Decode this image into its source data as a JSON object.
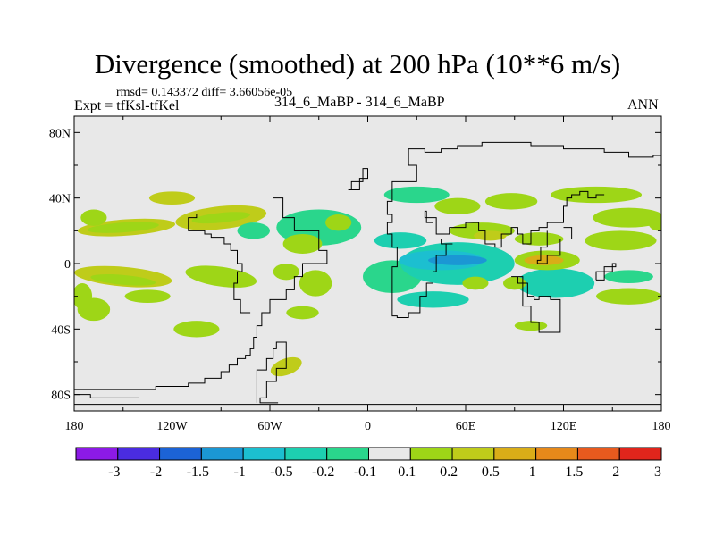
{
  "title": "Divergence (smoothed) at 200 hPa (10**6 m/s)",
  "stats_line": "rmsd= 0.143372 diff= 3.66056e-05",
  "expt_line": "Expt = tfKsl-tfKel",
  "center_label": "314_6_MaBP - 314_6_MaBP",
  "season": "ANN",
  "chart_data": {
    "type": "heatmap",
    "projection": "cylindrical-equidistant",
    "title": "Divergence (smoothed) at 200 hPa (10**6 m/s)",
    "variable": "divergence",
    "units": "10**6 m/s",
    "xlim": [
      -180,
      180
    ],
    "ylim": [
      -90,
      90
    ],
    "x_ticks": [
      {
        "value": -180,
        "label": "180"
      },
      {
        "value": -120,
        "label": "120W"
      },
      {
        "value": -60,
        "label": "60W"
      },
      {
        "value": 0,
        "label": "0"
      },
      {
        "value": 60,
        "label": "60E"
      },
      {
        "value": 120,
        "label": "120E"
      },
      {
        "value": 180,
        "label": "180"
      }
    ],
    "y_ticks": [
      {
        "value": 80,
        "label": "80N"
      },
      {
        "value": 40,
        "label": "40N"
      },
      {
        "value": 0,
        "label": "0"
      },
      {
        "value": -40,
        "label": "40S"
      },
      {
        "value": -80,
        "label": "80S"
      }
    ],
    "colorbar": {
      "labels": [
        "-3",
        "-2",
        "-1.5",
        "-1",
        "-0.5",
        "-0.2",
        "-0.1",
        "0.1",
        "0.2",
        "0.5",
        "1",
        "1.5",
        "2",
        "3"
      ],
      "colors": [
        "#8c1ae6",
        "#4a2ce0",
        "#1c63d6",
        "#1b97d4",
        "#1cbfd0",
        "#1dcfb0",
        "#2ad68c",
        "#e8e8e8",
        "#9ed617",
        "#bfcc1a",
        "#d9ad18",
        "#e6891a",
        "#e85a1e",
        "#e0251c"
      ]
    },
    "blobs": [
      {
        "lon": -148,
        "lat": 22,
        "rx": 30,
        "ry": 5,
        "level": 9,
        "rot": -4
      },
      {
        "lon": -150,
        "lat": 22,
        "rx": 22,
        "ry": 3,
        "level": 8,
        "rot": -4
      },
      {
        "lon": -168,
        "lat": 28,
        "rx": 8,
        "ry": 5,
        "level": 8,
        "rot": 0
      },
      {
        "lon": -90,
        "lat": 28,
        "rx": 28,
        "ry": 7,
        "level": 9,
        "rot": -6
      },
      {
        "lon": -90,
        "lat": 28,
        "rx": 18,
        "ry": 3,
        "level": 8,
        "rot": -6
      },
      {
        "lon": -120,
        "lat": 40,
        "rx": 14,
        "ry": 4,
        "level": 9,
        "rot": 0
      },
      {
        "lon": -30,
        "lat": 22,
        "rx": 26,
        "ry": 11,
        "level": 6,
        "rot": 0
      },
      {
        "lon": -18,
        "lat": 25,
        "rx": 8,
        "ry": 5,
        "level": 8,
        "rot": 0
      },
      {
        "lon": -40,
        "lat": 12,
        "rx": 12,
        "ry": 6,
        "level": 8,
        "rot": 0
      },
      {
        "lon": -70,
        "lat": 20,
        "rx": 10,
        "ry": 5,
        "level": 6,
        "rot": 0
      },
      {
        "lon": -150,
        "lat": -8,
        "rx": 30,
        "ry": 6,
        "level": 9,
        "rot": 5
      },
      {
        "lon": -150,
        "lat": -10,
        "rx": 20,
        "ry": 3,
        "level": 8,
        "rot": 5
      },
      {
        "lon": -168,
        "lat": -28,
        "rx": 10,
        "ry": 7,
        "level": 8,
        "rot": 0
      },
      {
        "lon": -90,
        "lat": -8,
        "rx": 22,
        "ry": 6,
        "level": 8,
        "rot": 8
      },
      {
        "lon": -135,
        "lat": -20,
        "rx": 14,
        "ry": 4,
        "level": 8,
        "rot": 0
      },
      {
        "lon": -105,
        "lat": -40,
        "rx": 14,
        "ry": 5,
        "level": 8,
        "rot": 0
      },
      {
        "lon": -40,
        "lat": -30,
        "rx": 10,
        "ry": 4,
        "level": 8,
        "rot": 0
      },
      {
        "lon": -50,
        "lat": -63,
        "rx": 10,
        "ry": 5,
        "level": 9,
        "rot": -20
      },
      {
        "lon": -32,
        "lat": -12,
        "rx": 10,
        "ry": 8,
        "level": 8,
        "rot": 0
      },
      {
        "lon": -50,
        "lat": -5,
        "rx": 8,
        "ry": 5,
        "level": 8,
        "rot": 0
      },
      {
        "lon": 15,
        "lat": -8,
        "rx": 18,
        "ry": 10,
        "level": 6,
        "rot": 0
      },
      {
        "lon": 55,
        "lat": 0,
        "rx": 35,
        "ry": 13,
        "level": 5,
        "rot": 0
      },
      {
        "lon": 45,
        "lat": 2,
        "rx": 26,
        "ry": 6,
        "level": 4,
        "rot": 0
      },
      {
        "lon": 55,
        "lat": 2,
        "rx": 18,
        "ry": 3,
        "level": 3,
        "rot": 0
      },
      {
        "lon": 20,
        "lat": 14,
        "rx": 16,
        "ry": 5,
        "level": 5,
        "rot": 0
      },
      {
        "lon": 70,
        "lat": 20,
        "rx": 20,
        "ry": 5,
        "level": 8,
        "rot": 0
      },
      {
        "lon": 75,
        "lat": 17,
        "rx": 10,
        "ry": 3,
        "level": 9,
        "rot": 0
      },
      {
        "lon": 40,
        "lat": -22,
        "rx": 22,
        "ry": 5,
        "level": 5,
        "rot": 0
      },
      {
        "lon": 115,
        "lat": -12,
        "rx": 24,
        "ry": 9,
        "level": 5,
        "rot": 0
      },
      {
        "lon": 110,
        "lat": 2,
        "rx": 20,
        "ry": 6,
        "level": 8,
        "rot": 0
      },
      {
        "lon": 108,
        "lat": 2,
        "rx": 12,
        "ry": 3,
        "level": 10,
        "rot": 0
      },
      {
        "lon": 105,
        "lat": 15,
        "rx": 15,
        "ry": 4,
        "level": 8,
        "rot": 0
      },
      {
        "lon": 155,
        "lat": 14,
        "rx": 22,
        "ry": 6,
        "level": 8,
        "rot": 0
      },
      {
        "lon": 160,
        "lat": 28,
        "rx": 22,
        "ry": 6,
        "level": 8,
        "rot": 0
      },
      {
        "lon": 160,
        "lat": -20,
        "rx": 20,
        "ry": 5,
        "level": 8,
        "rot": 0
      },
      {
        "lon": 160,
        "lat": -8,
        "rx": 15,
        "ry": 4,
        "level": 6,
        "rot": 0
      },
      {
        "lon": 88,
        "lat": 38,
        "rx": 16,
        "ry": 5,
        "level": 8,
        "rot": 0
      },
      {
        "lon": 140,
        "lat": 42,
        "rx": 28,
        "ry": 5,
        "level": 8,
        "rot": 0
      },
      {
        "lon": 30,
        "lat": 42,
        "rx": 20,
        "ry": 5,
        "level": 6,
        "rot": 0
      },
      {
        "lon": 55,
        "lat": 35,
        "rx": 14,
        "ry": 5,
        "level": 8,
        "rot": 0
      },
      {
        "lon": 100,
        "lat": -38,
        "rx": 10,
        "ry": 3,
        "level": 8,
        "rot": 0
      },
      {
        "lon": 178,
        "lat": 25,
        "rx": 6,
        "ry": 5,
        "level": 8,
        "rot": 0
      },
      {
        "lon": -175,
        "lat": -20,
        "rx": 6,
        "ry": 8,
        "level": 8,
        "rot": 0
      },
      {
        "lon": 66,
        "lat": -12,
        "rx": 8,
        "ry": 4,
        "level": 8,
        "rot": 0
      },
      {
        "lon": 90,
        "lat": -12,
        "rx": 7,
        "ry": 4,
        "level": 8,
        "rot": 0
      }
    ],
    "coastlines": [
      [
        [
          -58,
          40
        ],
        [
          -52,
          40
        ],
        [
          -52,
          28
        ],
        [
          -45,
          28
        ],
        [
          -45,
          20
        ],
        [
          -30,
          20
        ],
        [
          -30,
          8
        ],
        [
          -25,
          8
        ],
        [
          -25,
          0
        ],
        [
          -40,
          0
        ],
        [
          -40,
          -8
        ],
        [
          -45,
          -8
        ],
        [
          -45,
          -16
        ],
        [
          -50,
          -16
        ],
        [
          -50,
          -22
        ],
        [
          -60,
          -22
        ],
        [
          -60,
          -30
        ],
        [
          -65,
          -30
        ],
        [
          -65,
          -38
        ],
        [
          -68,
          -38
        ],
        [
          -70,
          -45
        ],
        [
          -72,
          -52
        ],
        [
          -75,
          -56
        ],
        [
          -80,
          -58
        ],
        [
          -85,
          -62
        ],
        [
          -90,
          -66
        ],
        [
          -100,
          -70
        ],
        [
          -110,
          -73
        ],
        [
          -130,
          -75
        ],
        [
          -150,
          -77
        ],
        [
          -180,
          -77
        ]
      ],
      [
        [
          -180,
          -86
        ],
        [
          180,
          -86
        ]
      ],
      [
        [
          -68,
          -85
        ],
        [
          -68,
          -72
        ],
        [
          -62,
          -65
        ],
        [
          -58,
          -58
        ],
        [
          -56,
          -52
        ],
        [
          -54,
          -48
        ],
        [
          -50,
          -48
        ],
        [
          -50,
          -58
        ],
        [
          -56,
          -64
        ],
        [
          -62,
          -72
        ],
        [
          -66,
          -82
        ],
        [
          -55,
          -85
        ]
      ],
      [
        [
          25,
          66
        ],
        [
          25,
          60
        ],
        [
          30,
          60
        ],
        [
          30,
          50
        ],
        [
          15,
          50
        ],
        [
          15,
          38
        ],
        [
          12,
          38
        ],
        [
          12,
          32
        ],
        [
          15,
          30
        ],
        [
          15,
          25
        ],
        [
          12,
          25
        ],
        [
          12,
          18
        ],
        [
          15,
          18
        ],
        [
          15,
          10
        ],
        [
          18,
          10
        ],
        [
          18,
          -2
        ],
        [
          15,
          -2
        ],
        [
          15,
          -15
        ],
        [
          15,
          -25
        ],
        [
          18,
          -32
        ],
        [
          25,
          -33
        ],
        [
          32,
          -30
        ],
        [
          36,
          -20
        ],
        [
          40,
          -12
        ],
        [
          42,
          -5
        ],
        [
          48,
          5
        ],
        [
          52,
          12
        ],
        [
          45,
          12
        ],
        [
          40,
          15
        ],
        [
          36,
          25
        ],
        [
          35,
          32
        ],
        [
          42,
          28
        ],
        [
          50,
          18
        ],
        [
          60,
          22
        ],
        [
          68,
          25
        ],
        [
          72,
          20
        ],
        [
          78,
          12
        ],
        [
          82,
          10
        ],
        [
          88,
          18
        ],
        [
          92,
          22
        ],
        [
          95,
          18
        ],
        [
          100,
          12
        ],
        [
          105,
          20
        ],
        [
          110,
          22
        ],
        [
          120,
          25
        ],
        [
          122,
          35
        ],
        [
          125,
          40
        ],
        [
          130,
          42
        ],
        [
          135,
          44
        ],
        [
          140,
          40
        ],
        [
          145,
          42
        ]
      ],
      [
        [
          25,
          66
        ],
        [
          35,
          70
        ],
        [
          45,
          68
        ],
        [
          55,
          70
        ],
        [
          70,
          72
        ],
        [
          85,
          74
        ],
        [
          100,
          74
        ],
        [
          120,
          72
        ],
        [
          145,
          70
        ],
        [
          160,
          68
        ],
        [
          175,
          65
        ],
        [
          180,
          66
        ]
      ],
      [
        [
          -12,
          45
        ],
        [
          -5,
          45
        ],
        [
          -5,
          52
        ],
        [
          0,
          52
        ],
        [
          0,
          58
        ],
        [
          -3,
          58
        ],
        [
          -3,
          50
        ],
        [
          -10,
          50
        ],
        [
          -12,
          45
        ]
      ],
      [
        [
          88,
          -8
        ],
        [
          95,
          -8
        ],
        [
          98,
          -12
        ],
        [
          102,
          -20
        ],
        [
          105,
          -22
        ],
        [
          112,
          -20
        ],
        [
          118,
          -22
        ],
        [
          118,
          -38
        ],
        [
          112,
          -42
        ],
        [
          105,
          -42
        ],
        [
          100,
          -36
        ],
        [
          100,
          -28
        ],
        [
          95,
          -26
        ],
        [
          92,
          -12
        ],
        [
          88,
          -8
        ]
      ],
      [
        [
          -105,
          30
        ],
        [
          -110,
          28
        ],
        [
          -110,
          20
        ],
        [
          -100,
          20
        ],
        [
          -96,
          18
        ],
        [
          -88,
          16
        ],
        [
          -84,
          12
        ],
        [
          -80,
          8
        ],
        [
          -77,
          0
        ],
        [
          -80,
          -5
        ],
        [
          -82,
          -12
        ],
        [
          -78,
          -22
        ],
        [
          -72,
          -30
        ]
      ],
      [
        [
          -180,
          -90
        ],
        [
          180,
          -90
        ]
      ],
      [
        [
          110,
          20
        ],
        [
          106,
          10
        ],
        [
          104,
          2
        ],
        [
          110,
          0
        ],
        [
          118,
          5
        ],
        [
          125,
          15
        ],
        [
          120,
          22
        ]
      ],
      [
        [
          140,
          -10
        ],
        [
          150,
          -5
        ],
        [
          152,
          0
        ],
        [
          145,
          -2
        ],
        [
          140,
          -10
        ]
      ],
      [
        [
          -180,
          -80
        ],
        [
          -170,
          -80
        ],
        [
          -160,
          -82
        ],
        [
          -140,
          -82
        ]
      ]
    ]
  }
}
